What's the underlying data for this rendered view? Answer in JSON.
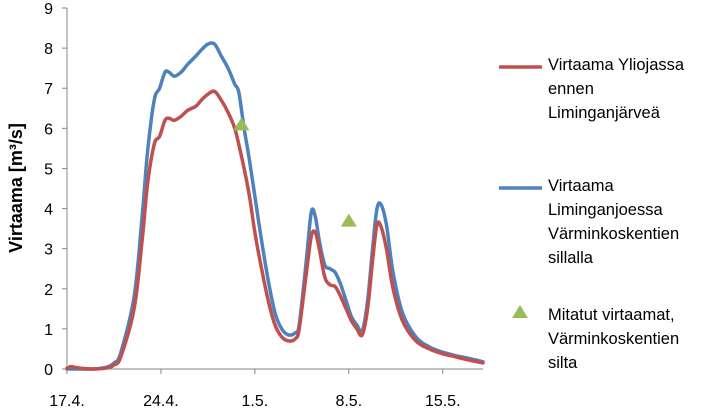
{
  "chart_data": {
    "type": "line",
    "ylabel": "Virtaama [m³/s]",
    "xlim_day": [
      0,
      31
    ],
    "ylim": [
      0,
      9
    ],
    "y_ticks": [
      0,
      1,
      2,
      3,
      4,
      5,
      6,
      7,
      8,
      9
    ],
    "x_ticks": [
      {
        "label": "17.4.",
        "day": 0
      },
      {
        "label": "24.4.",
        "day": 7
      },
      {
        "label": "1.5.",
        "day": 14
      },
      {
        "label": "8.5.",
        "day": 21
      },
      {
        "label": "15.5.",
        "day": 28
      }
    ],
    "grid": false,
    "legend_position": "right",
    "series": [
      {
        "name": "Virtaama Yliojassa ennen Liminganjärveä",
        "color": "#c0504d",
        "kind": "line",
        "x": [
          0.0,
          0.3,
          0.6,
          1.0,
          2.0,
          3.0,
          3.5,
          4.0,
          5.0,
          5.6,
          6.0,
          6.5,
          6.9,
          7.3,
          7.6,
          8.0,
          8.5,
          9.0,
          9.6,
          10.0,
          10.5,
          11.0,
          11.5,
          12.0,
          12.5,
          12.8,
          13.2,
          13.6,
          14.0,
          14.5,
          15.0,
          15.5,
          16.0,
          16.5,
          17.0,
          17.3,
          17.8,
          18.2,
          18.5,
          18.8,
          19.2,
          19.6,
          20.0,
          20.4,
          20.8,
          21.2,
          21.6,
          22.0,
          22.4,
          22.8,
          23.1,
          23.4,
          23.8,
          24.3,
          25.0,
          26.0,
          27.0,
          28.0,
          29.0,
          30.0,
          31.0
        ],
        "y": [
          0.02,
          0.06,
          0.04,
          0.02,
          0.0,
          0.03,
          0.1,
          0.3,
          1.5,
          3.2,
          4.6,
          5.6,
          5.8,
          6.2,
          6.25,
          6.2,
          6.3,
          6.45,
          6.55,
          6.7,
          6.85,
          6.92,
          6.7,
          6.4,
          6.0,
          5.6,
          5.0,
          4.3,
          3.4,
          2.5,
          1.7,
          1.1,
          0.8,
          0.7,
          0.75,
          1.0,
          2.3,
          3.3,
          3.4,
          3.0,
          2.3,
          2.1,
          2.05,
          1.8,
          1.5,
          1.2,
          1.0,
          0.85,
          1.5,
          2.8,
          3.6,
          3.55,
          3.0,
          2.0,
          1.2,
          0.7,
          0.5,
          0.38,
          0.3,
          0.22,
          0.15
        ]
      },
      {
        "name": "Virtaama Liminganjoessa Värminkoskentien sillalla",
        "color": "#4f81bd",
        "kind": "line",
        "x": [
          0.0,
          1.0,
          2.0,
          3.0,
          3.5,
          4.0,
          5.0,
          5.6,
          6.0,
          6.5,
          6.9,
          7.3,
          7.6,
          8.0,
          8.5,
          9.0,
          9.6,
          10.0,
          10.5,
          11.0,
          11.5,
          12.0,
          12.5,
          12.8,
          13.2,
          13.6,
          14.0,
          14.5,
          15.0,
          15.5,
          16.0,
          16.5,
          17.0,
          17.3,
          17.8,
          18.2,
          18.5,
          18.8,
          19.2,
          19.6,
          20.0,
          20.4,
          20.8,
          21.2,
          21.6,
          22.0,
          22.4,
          22.8,
          23.1,
          23.4,
          23.8,
          24.3,
          25.0,
          26.0,
          27.0,
          28.0,
          29.0,
          30.0,
          31.0
        ],
        "y": [
          0.0,
          0.0,
          0.0,
          0.05,
          0.15,
          0.4,
          1.8,
          3.8,
          5.4,
          6.7,
          7.0,
          7.4,
          7.4,
          7.3,
          7.4,
          7.6,
          7.8,
          7.95,
          8.1,
          8.1,
          7.8,
          7.5,
          7.1,
          6.9,
          6.0,
          5.2,
          4.3,
          3.2,
          2.2,
          1.4,
          1.0,
          0.85,
          0.9,
          1.1,
          2.6,
          3.9,
          3.8,
          3.2,
          2.6,
          2.5,
          2.4,
          2.1,
          1.7,
          1.3,
          1.1,
          0.95,
          1.7,
          3.1,
          4.0,
          4.1,
          3.6,
          2.4,
          1.4,
          0.8,
          0.55,
          0.42,
          0.33,
          0.26,
          0.18
        ]
      },
      {
        "name": "Mitatut virtaamat, Värminkoskentien silta",
        "color": "#9bbb59",
        "kind": "marker",
        "x": [
          13.0,
          21.0
        ],
        "y": [
          6.1,
          3.7
        ]
      }
    ]
  },
  "legend": {
    "entries": [
      {
        "lines": [
          "Virtaama Yliojassa",
          "ennen",
          "Liminganjärveä"
        ]
      },
      {
        "lines": [
          "Virtaama",
          "Liminganjoessa",
          "Värminkoskentien",
          "sillalla"
        ]
      },
      {
        "lines": [
          "Mitatut virtaamat,",
          "Värminkoskentien",
          "silta"
        ]
      }
    ]
  }
}
